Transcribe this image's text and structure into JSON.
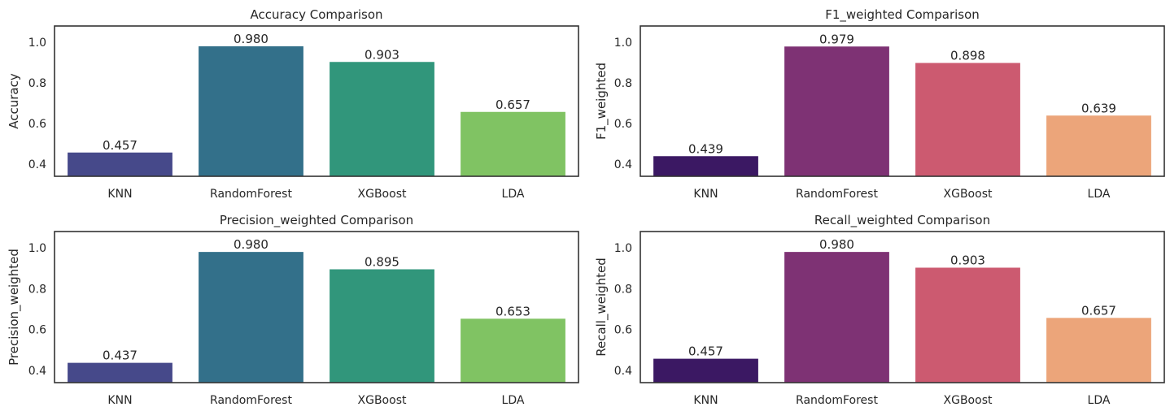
{
  "chart_data": [
    {
      "type": "bar",
      "title": "Accuracy Comparison",
      "xlabel": "",
      "ylabel": "Accuracy",
      "categories": [
        "KNN",
        "RandomForest",
        "XGBoost",
        "LDA"
      ],
      "values": [
        0.457,
        0.98,
        0.903,
        0.657
      ],
      "value_labels": [
        "0.457",
        "0.980",
        "0.903",
        "0.657"
      ],
      "yticks": [
        "0.4",
        "0.6",
        "0.8",
        "1.0"
      ],
      "ylim": [
        0.34,
        1.08
      ],
      "grid": false,
      "colors": [
        "#46498a",
        "#33708a",
        "#31967b",
        "#80c363"
      ]
    },
    {
      "type": "bar",
      "title": "F1_weighted Comparison",
      "xlabel": "",
      "ylabel": "F1_weighted",
      "categories": [
        "KNN",
        "RandomForest",
        "XGBoost",
        "LDA"
      ],
      "values": [
        0.439,
        0.979,
        0.898,
        0.639
      ],
      "value_labels": [
        "0.439",
        "0.979",
        "0.898",
        "0.639"
      ],
      "yticks": [
        "0.4",
        "0.6",
        "0.8",
        "1.0"
      ],
      "ylim": [
        0.34,
        1.08
      ],
      "grid": false,
      "colors": [
        "#3b1863",
        "#7e3274",
        "#cc5a70",
        "#eca57a"
      ]
    },
    {
      "type": "bar",
      "title": "Precision_weighted Comparison",
      "xlabel": "",
      "ylabel": "Precision_weighted",
      "categories": [
        "KNN",
        "RandomForest",
        "XGBoost",
        "LDA"
      ],
      "values": [
        0.437,
        0.98,
        0.895,
        0.653
      ],
      "value_labels": [
        "0.437",
        "0.980",
        "0.895",
        "0.653"
      ],
      "yticks": [
        "0.4",
        "0.6",
        "0.8",
        "1.0"
      ],
      "ylim": [
        0.34,
        1.08
      ],
      "grid": false,
      "colors": [
        "#46498a",
        "#33708a",
        "#31967b",
        "#80c363"
      ]
    },
    {
      "type": "bar",
      "title": "Recall_weighted Comparison",
      "xlabel": "",
      "ylabel": "Recall_weighted",
      "categories": [
        "KNN",
        "RandomForest",
        "XGBoost",
        "LDA"
      ],
      "values": [
        0.457,
        0.98,
        0.903,
        0.657
      ],
      "value_labels": [
        "0.457",
        "0.980",
        "0.903",
        "0.657"
      ],
      "yticks": [
        "0.4",
        "0.6",
        "0.8",
        "1.0"
      ],
      "ylim": [
        0.34,
        1.08
      ],
      "grid": false,
      "colors": [
        "#3b1863",
        "#7e3274",
        "#cc5a70",
        "#eca57a"
      ]
    }
  ]
}
